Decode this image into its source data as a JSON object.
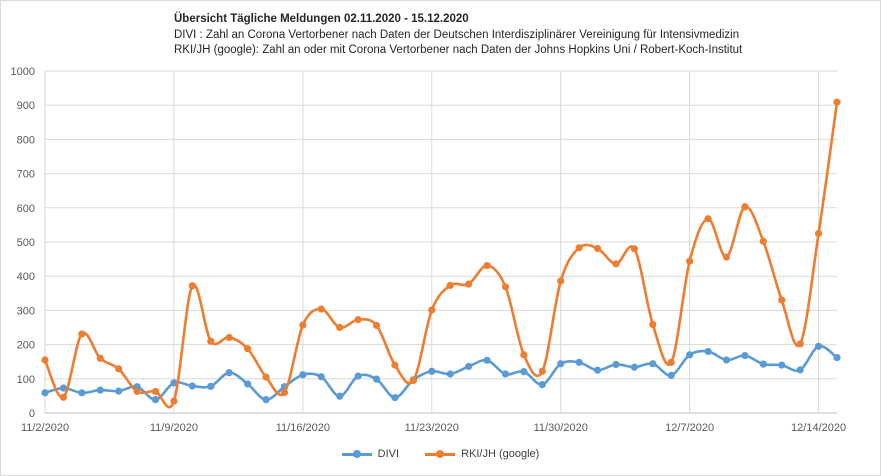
{
  "chart_data": {
    "type": "line",
    "title": "Übersicht  Tägliche Meldungen  02.11.2020  - 15.12.2020",
    "subtitle_lines": [
      "DIVI : Zahl an Corona Vertorbener nach Daten der Deutschen Interdisziplinärer Vereinigung für Intensivmedizin",
      "RKI/JH (google): Zahl an oder mit Corona  Vertorbener nach Daten der  Johns Hopkins Uni / Robert-Koch-Institut"
    ],
    "xlabel": "",
    "ylabel": "",
    "ylim": [
      0,
      1000
    ],
    "yticks": [
      "0",
      "100",
      "200",
      "300",
      "400",
      "500",
      "600",
      "700",
      "800",
      "900",
      "1000"
    ],
    "xtick_labels": [
      "11/2/2020",
      "11/9/2020",
      "11/16/2020",
      "11/23/2020",
      "11/30/2020",
      "12/7/2020",
      "12/14/2020"
    ],
    "x": [
      "11/2/2020",
      "11/3/2020",
      "11/4/2020",
      "11/5/2020",
      "11/6/2020",
      "11/7/2020",
      "11/8/2020",
      "11/9/2020",
      "11/10/2020",
      "11/11/2020",
      "11/12/2020",
      "11/13/2020",
      "11/14/2020",
      "11/15/2020",
      "11/16/2020",
      "11/17/2020",
      "11/18/2020",
      "11/19/2020",
      "11/20/2020",
      "11/21/2020",
      "11/22/2020",
      "11/23/2020",
      "11/24/2020",
      "11/25/2020",
      "11/26/2020",
      "11/27/2020",
      "11/28/2020",
      "11/29/2020",
      "11/30/2020",
      "12/1/2020",
      "12/2/2020",
      "12/3/2020",
      "12/4/2020",
      "12/5/2020",
      "12/6/2020",
      "12/7/2020",
      "12/8/2020",
      "12/9/2020",
      "12/10/2020",
      "12/11/2020",
      "12/12/2020",
      "12/13/2020",
      "12/14/2020",
      "12/15/2020"
    ],
    "grid": true,
    "legend_position": "bottom",
    "series": [
      {
        "name": "DIVI",
        "color": "#5b9bd5",
        "values": [
          59,
          73,
          59,
          67,
          64,
          77,
          39,
          88,
          79,
          78,
          118,
          85,
          39,
          77,
          112,
          106,
          49,
          108,
          99,
          45,
          97,
          122,
          114,
          136,
          154,
          114,
          121,
          83,
          144,
          148,
          125,
          142,
          134,
          144,
          110,
          170,
          180,
          155,
          168,
          143,
          140,
          126,
          195,
          162
        ]
      },
      {
        "name": "RKI/JH (google)",
        "color": "#ed7d31",
        "values": [
          155,
          46,
          231,
          160,
          129,
          63,
          63,
          35,
          372,
          210,
          221,
          188,
          105,
          60,
          257,
          304,
          250,
          273,
          256,
          140,
          95,
          301,
          373,
          377,
          431,
          369,
          170,
          122,
          386,
          483,
          481,
          436,
          480,
          259,
          148,
          444,
          568,
          456,
          603,
          502,
          330,
          202,
          525,
          909
        ]
      }
    ]
  },
  "legend": {
    "items": [
      {
        "label": "DIVI",
        "color": "#5b9bd5"
      },
      {
        "label": "RKI/JH (google)",
        "color": "#ed7d31"
      }
    ]
  }
}
